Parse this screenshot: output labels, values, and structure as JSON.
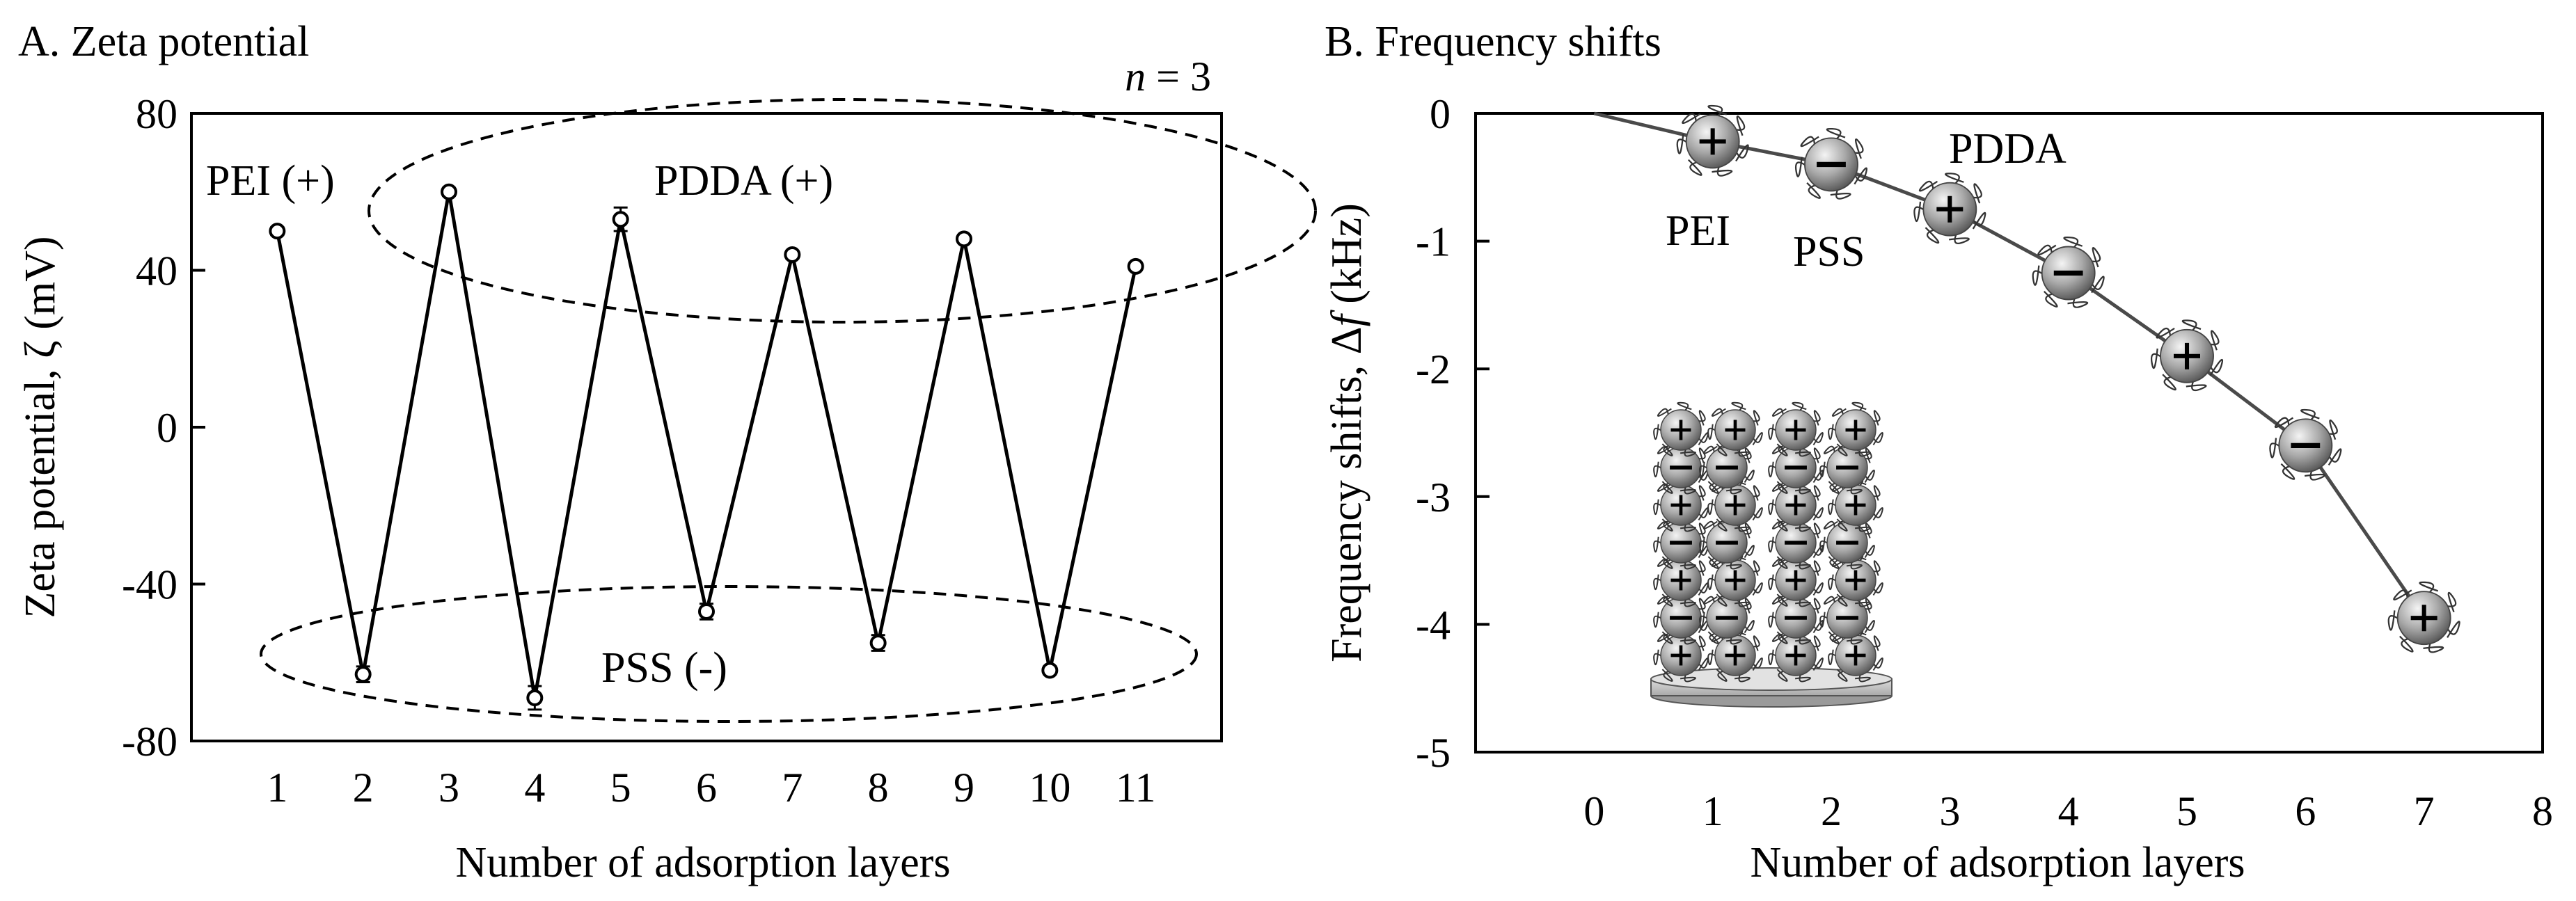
{
  "chart_data": [
    {
      "type": "line",
      "panel_title": "A. Zeta potential",
      "annotation_n": "n = 3",
      "xlabel": "Number of adsorption layers",
      "ylabel": "Zeta potential, ζ (mV)",
      "xlim": [
        0,
        12
      ],
      "ylim": [
        -80,
        80
      ],
      "xticks": [
        "1",
        "2",
        "3",
        "4",
        "5",
        "6",
        "7",
        "8",
        "9",
        "10",
        "11"
      ],
      "yticks": [
        "80",
        "40",
        "0",
        "-40",
        "-80"
      ],
      "x": [
        1,
        2,
        3,
        4,
        5,
        6,
        7,
        8,
        9,
        10,
        11
      ],
      "values": [
        50,
        -63,
        60,
        -69,
        53,
        -47,
        44,
        -55,
        48,
        -62,
        41
      ],
      "error": [
        1,
        2,
        1,
        3,
        3,
        2,
        1,
        2,
        1,
        1,
        1
      ],
      "annotations": [
        "PEI (+)",
        "PDDA (+)",
        "PSS (-)"
      ]
    },
    {
      "type": "line",
      "panel_title": "B. Frequency shifts",
      "xlabel": "Number of adsorption layers",
      "ylabel": "Frequency shifts, Δf (kHz)",
      "xlim": [
        -1,
        8
      ],
      "ylim": [
        -5,
        0
      ],
      "xticks": [
        "0",
        "1",
        "2",
        "3",
        "4",
        "5",
        "6",
        "7",
        "8"
      ],
      "yticks": [
        "0",
        "-1",
        "-2",
        "-3",
        "-4",
        "-5"
      ],
      "x": [
        0,
        1,
        2,
        3,
        4,
        5,
        6,
        7
      ],
      "values": [
        0,
        -0.22,
        -0.4,
        -0.75,
        -1.25,
        -1.9,
        -2.6,
        -3.95
      ],
      "charges": [
        "",
        "+",
        "−",
        "+",
        "−",
        "+",
        "−",
        "+"
      ],
      "annotations": [
        "PEI",
        "PSS",
        "PDDA"
      ],
      "inset": {
        "rows": [
          {
            "sign": "+"
          },
          {
            "sign": "−"
          },
          {
            "sign": "+"
          },
          {
            "sign": "−"
          },
          {
            "sign": "+"
          },
          {
            "sign": "−"
          },
          {
            "sign": "+"
          }
        ]
      }
    }
  ]
}
